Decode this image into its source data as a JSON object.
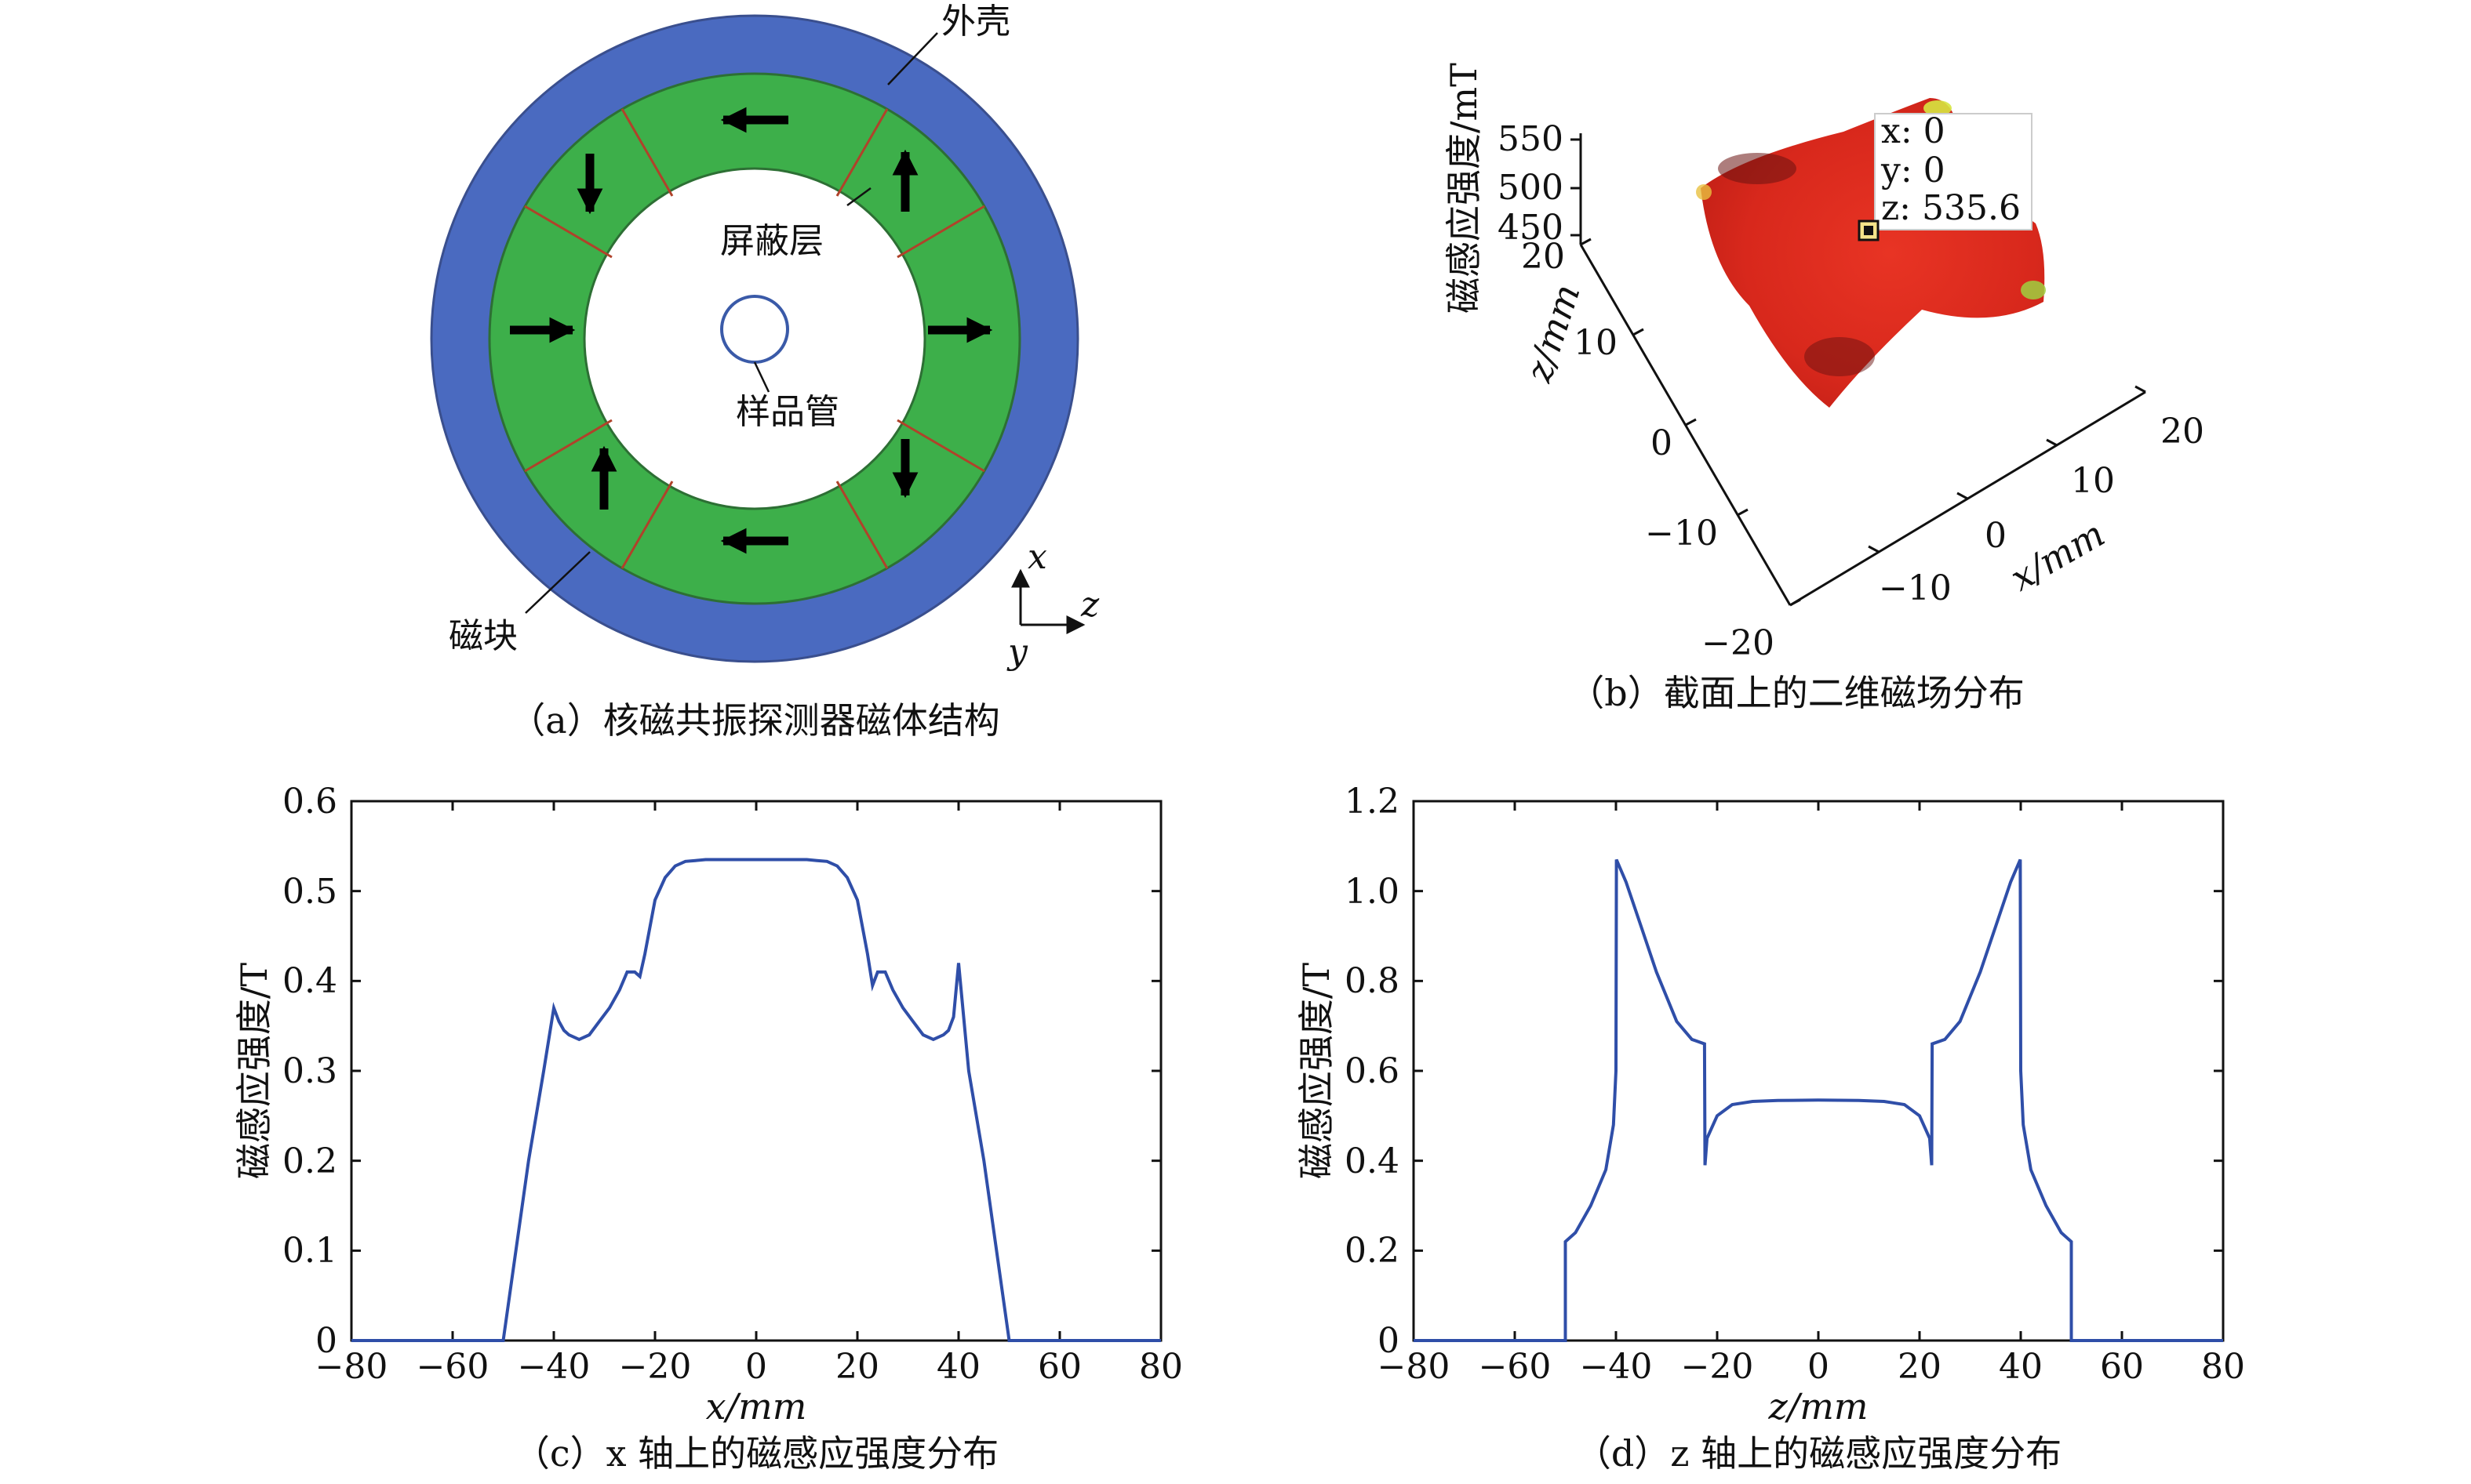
{
  "panel_a": {
    "caption": "（a）核磁共振探测器磁体结构",
    "labels": {
      "shell": "外壳",
      "shield": "屏蔽层",
      "sample_tube": "样品管",
      "magnet_block": "磁块"
    },
    "axes": {
      "x": "x",
      "z": "z",
      "y": "y"
    },
    "colors": {
      "shell": "#4a6ac0",
      "magnet": "#3daf4a",
      "arrow": "#000000",
      "segment_line": "#b0422a"
    }
  },
  "panel_b": {
    "caption": "（b）截面上的二维磁场分布",
    "zlabel": "磁感应强度/mT",
    "ylabel": "z/mm",
    "xlabel": "x/mm",
    "z_ticks": [
      "550",
      "500",
      "450"
    ],
    "y_ticks": [
      "20",
      "10",
      "0",
      "−10",
      "−20"
    ],
    "x_ticks": [
      "20",
      "10",
      "0",
      "−10"
    ],
    "datatip": {
      "x": "x: 0",
      "y": "y: 0",
      "z": "z: 535.6"
    },
    "colors": {
      "surface": "#e02a1e",
      "dark": "#701010",
      "edge": "#d6e640"
    }
  },
  "chart_data": [
    {
      "type": "line",
      "caption": "（c）x 轴上的磁感应强度分布",
      "xlabel": "x/mm",
      "ylabel": "磁感应强度/T",
      "xlim": [
        -80,
        80
      ],
      "ylim": [
        0,
        0.6
      ],
      "x_ticks": [
        "−80",
        "−60",
        "−40",
        "−20",
        "0",
        "20",
        "40",
        "60",
        "80"
      ],
      "y_ticks": [
        "0",
        "0.1",
        "0.2",
        "0.3",
        "0.4",
        "0.5",
        "0.6"
      ],
      "color": "#2f4ea8",
      "x": [
        -80,
        -50,
        -48,
        -45,
        -42,
        -40,
        -39,
        -38,
        -37,
        -35,
        -33,
        -31,
        -29,
        -27,
        -25.5,
        -24,
        -23,
        -22,
        -20,
        -18,
        -16,
        -14,
        -12,
        -10,
        -5,
        0,
        5,
        10,
        12,
        14,
        16,
        18,
        20,
        22,
        23,
        24,
        25.5,
        27,
        29,
        31,
        33,
        35,
        37,
        38,
        39,
        40,
        42,
        45,
        48,
        50,
        80
      ],
      "y": [
        0,
        0,
        0.08,
        0.2,
        0.3,
        0.37,
        0.355,
        0.345,
        0.34,
        0.335,
        0.34,
        0.355,
        0.37,
        0.39,
        0.41,
        0.41,
        0.405,
        0.43,
        0.49,
        0.515,
        0.528,
        0.533,
        0.534,
        0.535,
        0.535,
        0.535,
        0.535,
        0.535,
        0.534,
        0.533,
        0.528,
        0.515,
        0.49,
        0.43,
        0.395,
        0.41,
        0.41,
        0.39,
        0.37,
        0.355,
        0.34,
        0.335,
        0.34,
        0.345,
        0.36,
        0.42,
        0.3,
        0.2,
        0.08,
        0,
        0
      ]
    },
    {
      "type": "line",
      "caption": "（d）z 轴上的磁感应强度分布",
      "xlabel": "z/mm",
      "ylabel": "磁感应强度/T",
      "xlim": [
        -80,
        80
      ],
      "ylim": [
        0,
        1.2
      ],
      "x_ticks": [
        "−80",
        "−60",
        "−40",
        "−20",
        "0",
        "20",
        "40",
        "60",
        "80"
      ],
      "y_ticks": [
        "0",
        "0.2",
        "0.4",
        "0.6",
        "0.8",
        "1.0",
        "1.2"
      ],
      "color": "#2f4ea8",
      "x": [
        -80,
        -50,
        -50,
        -48,
        -45,
        -42,
        -40.5,
        -40,
        -39.9,
        -38,
        -35,
        -32,
        -28,
        -25,
        -22.5,
        -22.4,
        -22,
        -20,
        -17,
        -13,
        -8,
        0,
        8,
        13,
        17,
        20,
        22,
        22.4,
        22.5,
        25,
        28,
        32,
        35,
        38,
        39.9,
        40,
        40.5,
        42,
        45,
        48,
        50,
        50,
        80
      ],
      "y": [
        0,
        0,
        0.22,
        0.24,
        0.3,
        0.38,
        0.48,
        0.6,
        1.07,
        1.02,
        0.92,
        0.82,
        0.71,
        0.67,
        0.66,
        0.39,
        0.45,
        0.5,
        0.525,
        0.532,
        0.534,
        0.535,
        0.534,
        0.532,
        0.525,
        0.5,
        0.45,
        0.39,
        0.66,
        0.67,
        0.71,
        0.82,
        0.92,
        1.02,
        1.07,
        0.6,
        0.48,
        0.38,
        0.3,
        0.24,
        0.22,
        0,
        0
      ]
    }
  ]
}
